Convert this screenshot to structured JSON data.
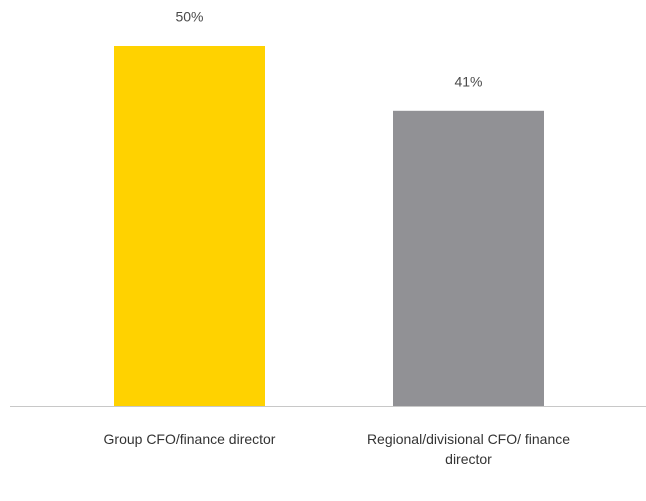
{
  "chart_data": {
    "type": "bar",
    "categories": [
      "Group CFO/finance director",
      "Regional/divisional CFO/ finance director"
    ],
    "values": [
      50,
      41
    ],
    "value_labels": [
      "50%",
      "41%"
    ],
    "colors": [
      "#ffd200",
      "#919195"
    ]
  }
}
